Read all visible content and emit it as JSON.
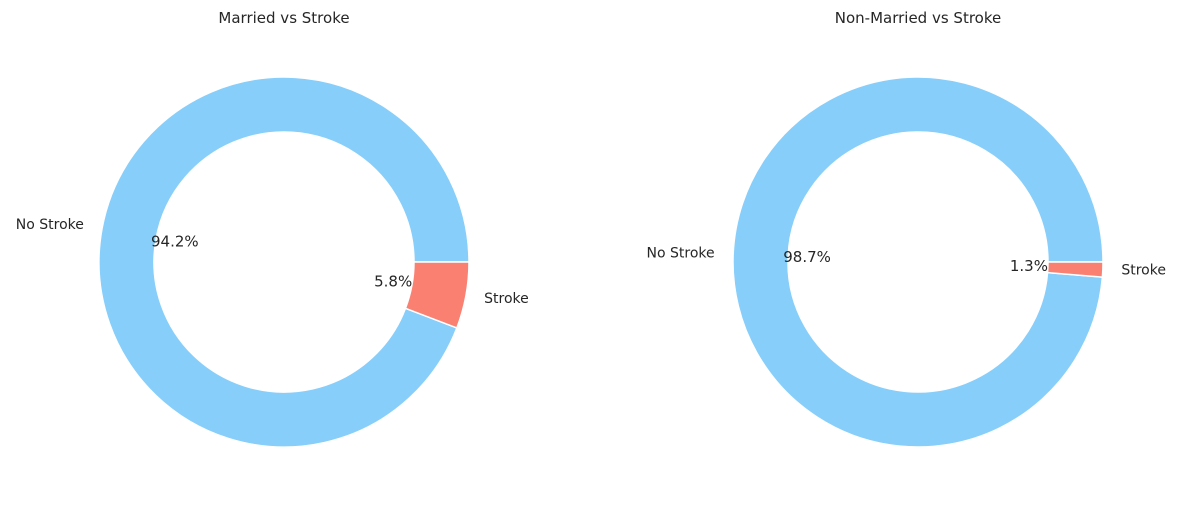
{
  "chart_data": [
    {
      "type": "pie",
      "title": "Married vs Stroke",
      "categories": [
        "No Stroke",
        "Stroke"
      ],
      "values": [
        94.2,
        5.8
      ],
      "labels_pct": [
        "94.2%",
        "5.8%"
      ],
      "colors": [
        "#87CEFA",
        "#FA8072"
      ],
      "donut": true
    },
    {
      "type": "pie",
      "title": "Non-Married vs Stroke",
      "categories": [
        "No Stroke",
        "Stroke"
      ],
      "values": [
        98.7,
        1.3
      ],
      "labels_pct": [
        "98.7%",
        "1.3%"
      ],
      "colors": [
        "#87CEFA",
        "#FA8072"
      ],
      "donut": true
    }
  ]
}
